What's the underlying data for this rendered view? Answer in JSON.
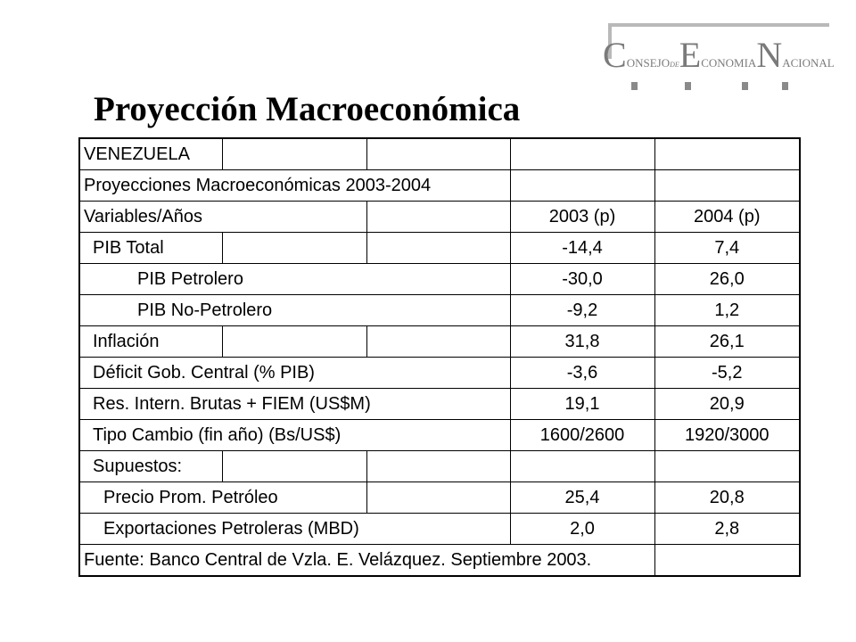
{
  "logo": {
    "consejo_initial": "C",
    "consejo_rest": "onsejo",
    "de": "de",
    "economia_initial": "E",
    "economia_rest": "conomia",
    "nacional_initial": "N",
    "nacional_rest": "acional"
  },
  "title": "Proyección Macroeconómica",
  "table": {
    "country": "VENEZUELA",
    "subtitle": "Proyecciones Macroeconómicas 2003-2004",
    "header": {
      "label": "Variables/Años",
      "col1": "2003 (p)",
      "col2": "2004 (p)"
    },
    "rows": [
      {
        "label": "PIB Total",
        "v2003": "-14,4",
        "v2004": "7,4"
      },
      {
        "label": "PIB Petrolero",
        "v2003": "-30,0",
        "v2004": "26,0"
      },
      {
        "label": "PIB No-Petrolero",
        "v2003": "-9,2",
        "v2004": "1,2"
      },
      {
        "label": "Inflación",
        "v2003": "31,8",
        "v2004": "26,1"
      },
      {
        "label": "Déficit Gob. Central (% PIB)",
        "v2003": "-3,6",
        "v2004": "-5,2"
      },
      {
        "label": "Res. Intern. Brutas + FIEM (US$M)",
        "v2003": "19,1",
        "v2004": "20,9"
      },
      {
        "label": "Tipo Cambio (fin año) (Bs/US$)",
        "v2003": "1600/2600",
        "v2004": "1920/3000"
      },
      {
        "label": "Supuestos:",
        "v2003": "",
        "v2004": ""
      },
      {
        "label": "Precio Prom. Petróleo",
        "v2003": "25,4",
        "v2004": "20,8"
      },
      {
        "label": "Exportaciones Petroleras (MBD)",
        "v2003": "2,0",
        "v2004": "2,8"
      }
    ],
    "source": "Fuente: Banco Central de Vzla. E. Velázquez. Septiembre 2003."
  }
}
